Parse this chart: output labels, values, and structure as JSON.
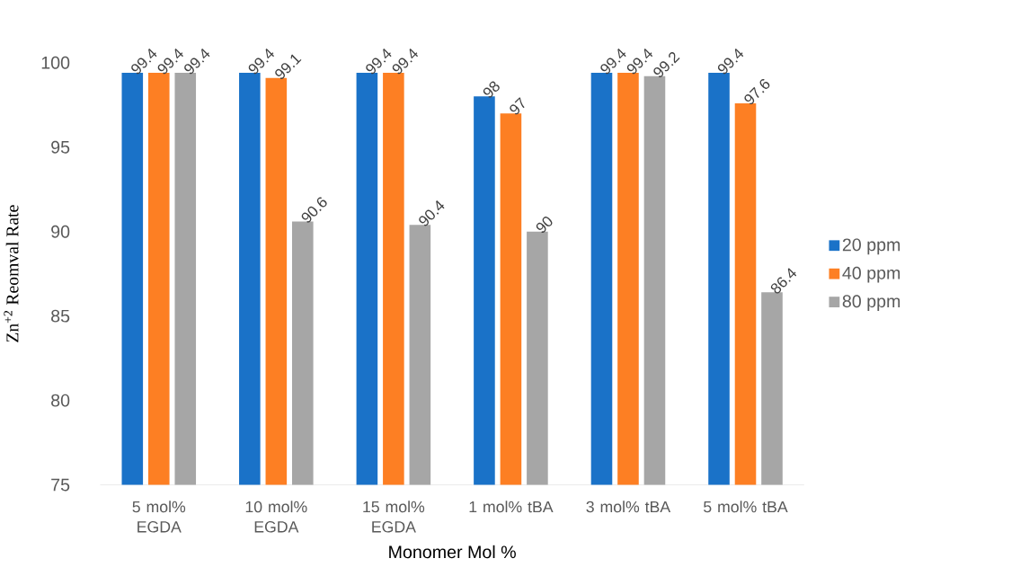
{
  "chart_data": {
    "type": "bar",
    "xlabel": "Monomer Mol %",
    "ylabel": "Zn$^{+2}$ Reomval Rate",
    "categories": [
      "5 mol% EGDA",
      "10 mol% EGDA",
      "15 mol% EGDA",
      "1 mol% tBA",
      "3 mol% tBA",
      "5 mol% tBA"
    ],
    "series": [
      {
        "name": "20 ppm",
        "color": "#1a72c8",
        "values": [
          99.4,
          99.4,
          99.4,
          98,
          99.4,
          99.4
        ]
      },
      {
        "name": "40 ppm",
        "color": "#fd7f23",
        "values": [
          99.4,
          99.1,
          99.4,
          97,
          99.4,
          97.6
        ]
      },
      {
        "name": "80 ppm",
        "color": "#a6a6a6",
        "values": [
          99.4,
          90.6,
          90.4,
          90,
          99.2,
          86.4
        ]
      }
    ],
    "ylim": [
      75,
      100
    ],
    "yticks": [
      75,
      80,
      85,
      90,
      95,
      100
    ],
    "legend": "right",
    "data_labels": true
  }
}
